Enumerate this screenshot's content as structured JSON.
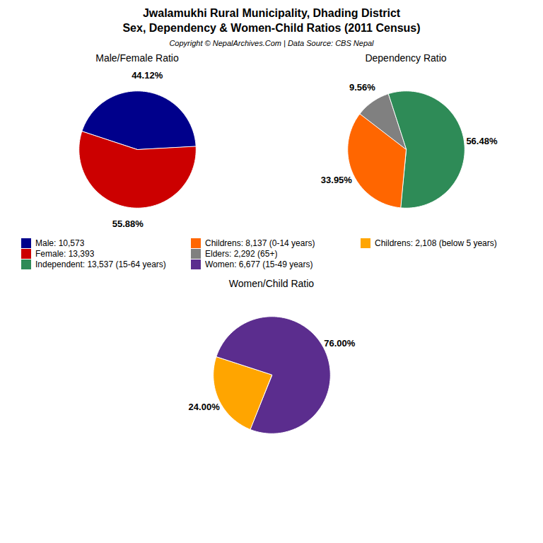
{
  "title": "Jwalamukhi Rural Municipality, Dhading District",
  "subtitle": "Sex, Dependency & Women-Child Ratios (2011 Census)",
  "annotations": [
    "Copyright © NepalArchives.Com | Data Source: CBS Nepal"
  ],
  "chart_data": [
    {
      "type": "pie",
      "title": "Male/Female Ratio",
      "categories": [
        "Male: 10,573",
        "Female: 13,393"
      ],
      "values": [
        44.12,
        55.88
      ],
      "value_labels": [
        "44.12%",
        "55.88%"
      ],
      "colors": [
        "#00008B",
        "#CC0000"
      ],
      "data_labels": true,
      "legend": true
    },
    {
      "type": "pie",
      "title": "Dependency Ratio",
      "categories": [
        "Independent: 13,537 (15-64 years)",
        "Childrens: 8,137 (0-14 years)",
        "Elders: 2,292 (65+)"
      ],
      "values": [
        56.48,
        33.95,
        9.56
      ],
      "value_labels": [
        "56.48%",
        "33.95%",
        "9.56%"
      ],
      "colors": [
        "#2E8B57",
        "#FF6600",
        "#808080"
      ],
      "data_labels": true,
      "legend": true
    },
    {
      "type": "pie",
      "title": "Women/Child Ratio",
      "categories": [
        "Women: 6,677 (15-49 years)",
        "Childrens: 2,108 (below 5 years)"
      ],
      "values": [
        76.0,
        24.0
      ],
      "value_labels": [
        "76.00%",
        "24.00%"
      ],
      "colors": [
        "#5B2D8E",
        "#FFA500"
      ],
      "data_labels": true,
      "legend": true
    }
  ]
}
